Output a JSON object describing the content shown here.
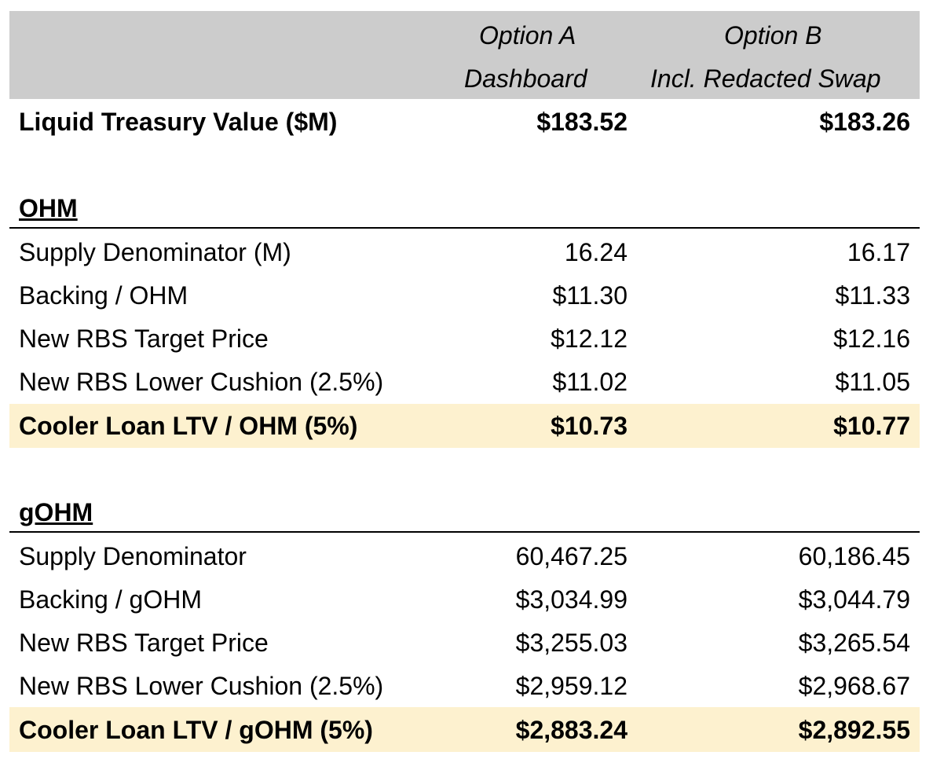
{
  "header": {
    "option_a_line1": "Option A",
    "option_a_line2": "Dashboard",
    "option_b_line1": "Option B",
    "option_b_line2": "Incl. Redacted Swap"
  },
  "treasury": {
    "label": "Liquid Treasury Value ($M)",
    "a": "$183.52",
    "b": "$183.26"
  },
  "ohm": {
    "title": "OHM",
    "rows": [
      {
        "label": "Supply Denominator (M)",
        "a": "16.24",
        "b": "16.17"
      },
      {
        "label": "Backing / OHM",
        "a": "$11.30",
        "b": "$11.33"
      },
      {
        "label": "New RBS Target Price",
        "a": "$12.12",
        "b": "$12.16"
      },
      {
        "label": "New RBS Lower Cushion (2.5%)",
        "a": "$11.02",
        "b": "$11.05"
      }
    ],
    "highlight": {
      "label": "Cooler Loan LTV / OHM (5%)",
      "a": "$10.73",
      "b": "$10.77"
    }
  },
  "gohm": {
    "title": "gOHM",
    "rows": [
      {
        "label": "Supply Denominator",
        "a": "60,467.25",
        "b": "60,186.45"
      },
      {
        "label": "Backing / gOHM",
        "a": "$3,034.99",
        "b": "$3,044.79"
      },
      {
        "label": "New RBS Target Price",
        "a": "$3,255.03",
        "b": "$3,265.54"
      },
      {
        "label": "New RBS Lower Cushion (2.5%)",
        "a": "$2,959.12",
        "b": "$2,968.67"
      }
    ],
    "highlight": {
      "label": "Cooler Loan LTV / gOHM (5%)",
      "a": "$2,883.24",
      "b": "$2,892.55"
    }
  },
  "colors": {
    "header_bg": "#cccccc",
    "highlight_bg": "#fdf1cf"
  }
}
